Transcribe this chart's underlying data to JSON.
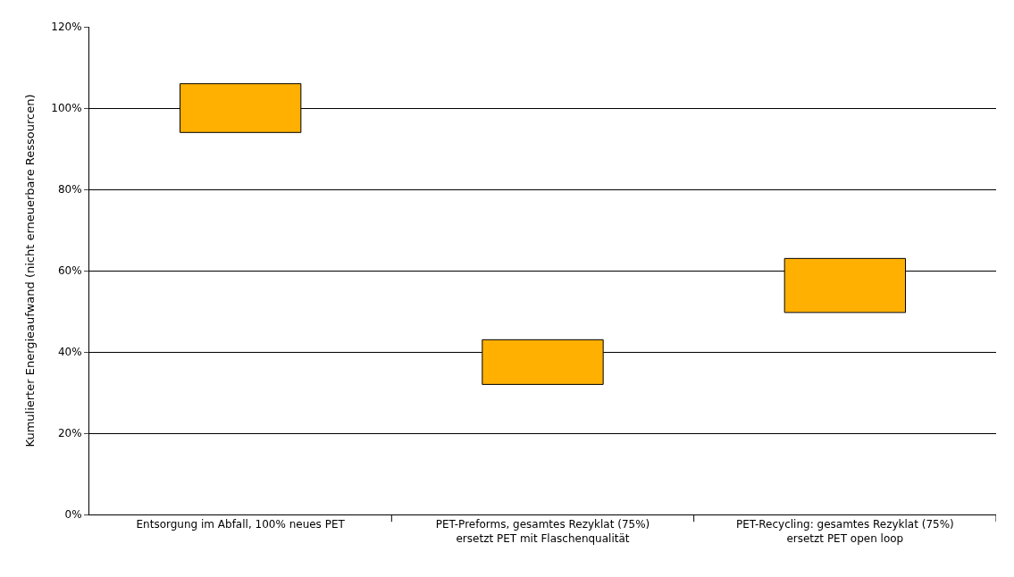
{
  "chart_data": {
    "type": "bar",
    "ylabel": "Kumulierter Energieaufwand (nicht erneuerbare Ressourcen)",
    "categories": [
      "Entsorgung im Abfall, 100% neues PET",
      "PET-Preforms, gesamtes Rezyklat (75%)\nersetzt PET mit Flaschenqualität",
      "PET-Recycling: gesamtes Rezyklat (75%)\nersetzt PET open loop"
    ],
    "base": [
      94,
      32,
      49.7
    ],
    "values": [
      12,
      11,
      13.3
    ],
    "color": "#ffb000",
    "ylim": [
      0,
      120
    ],
    "yticks": [
      {
        "value": 0,
        "label": "0%"
      },
      {
        "value": 20,
        "label": "20%"
      },
      {
        "value": 40,
        "label": "40%"
      },
      {
        "value": 60,
        "label": "60%"
      },
      {
        "value": 80,
        "label": "80%"
      },
      {
        "value": 100,
        "label": "100%"
      },
      {
        "value": 120,
        "label": "120%"
      }
    ],
    "grid": "y"
  }
}
